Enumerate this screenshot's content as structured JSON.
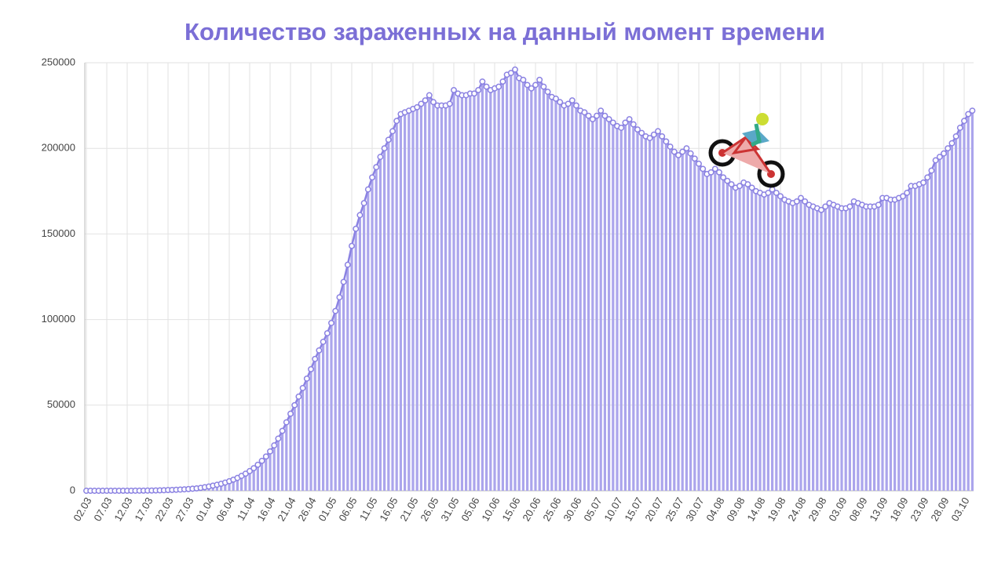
{
  "chart_data": {
    "type": "bar",
    "title": "Количество зараженных на данный момент времени",
    "categories": [
      "02.03",
      null,
      null,
      null,
      null,
      "07.03",
      null,
      null,
      null,
      null,
      "12.03",
      null,
      null,
      null,
      null,
      "17.03",
      null,
      null,
      null,
      null,
      "22.03",
      null,
      null,
      null,
      null,
      "27.03",
      null,
      null,
      null,
      null,
      "01.04",
      null,
      null,
      null,
      null,
      "06.04",
      null,
      null,
      null,
      null,
      "11.04",
      null,
      null,
      null,
      null,
      "16.04",
      null,
      null,
      null,
      null,
      "21.04",
      null,
      null,
      null,
      null,
      "26.04",
      null,
      null,
      null,
      null,
      "01.05",
      null,
      null,
      null,
      null,
      "06.05",
      null,
      null,
      null,
      null,
      "11.05",
      null,
      null,
      null,
      null,
      "16.05",
      null,
      null,
      null,
      null,
      "21.05",
      null,
      null,
      null,
      null,
      "26.05",
      null,
      null,
      null,
      null,
      "31.05",
      null,
      null,
      null,
      null,
      "05.06",
      null,
      null,
      null,
      null,
      "10.06",
      null,
      null,
      null,
      null,
      "15.06",
      null,
      null,
      null,
      null,
      "20.06",
      null,
      null,
      null,
      null,
      "25.06",
      null,
      null,
      null,
      null,
      "30.06",
      null,
      null,
      null,
      null,
      "05.07",
      null,
      null,
      null,
      null,
      "10.07",
      null,
      null,
      null,
      null,
      "15.07",
      null,
      null,
      null,
      null,
      "20.07",
      null,
      null,
      null,
      null,
      "25.07",
      null,
      null,
      null,
      null,
      "30.07",
      null,
      null,
      null,
      null,
      "04.08",
      null,
      null,
      null,
      null,
      "09.08",
      null,
      null,
      null,
      null,
      "14.08",
      null,
      null,
      null,
      null,
      "19.08",
      null,
      null,
      null,
      null,
      "24.08",
      null,
      null,
      null,
      null,
      "29.08",
      null,
      null,
      null,
      null,
      "03.09",
      null,
      null,
      null,
      null,
      "08.09",
      null,
      null,
      null,
      null,
      "13.09",
      null,
      null,
      null,
      null,
      "18.09",
      null,
      null,
      null,
      null,
      "23.09",
      null,
      null,
      null,
      null,
      "28.09",
      null,
      null,
      null,
      null,
      "03.10",
      null,
      null
    ],
    "values": [
      3,
      3,
      3,
      4,
      6,
      8,
      10,
      14,
      20,
      28,
      34,
      45,
      59,
      63,
      90,
      114,
      147,
      199,
      253,
      306,
      438,
      500,
      600,
      700,
      850,
      1000,
      1200,
      1400,
      1700,
      2100,
      2500,
      3000,
      3500,
      4100,
      4800,
      5600,
      6500,
      7500,
      8700,
      10000,
      11500,
      13200,
      15200,
      17500,
      20000,
      23000,
      26500,
      30500,
      35000,
      40000,
      45000,
      50000,
      55000,
      60000,
      65500,
      71000,
      77000,
      82000,
      87000,
      92000,
      98000,
      105000,
      113000,
      122000,
      132000,
      143000,
      153000,
      161000,
      168000,
      176000,
      183000,
      189000,
      195000,
      200000,
      205000,
      210000,
      216000,
      220000,
      221000,
      222000,
      223000,
      224000,
      226000,
      228000,
      231000,
      227000,
      225000,
      225000,
      225000,
      226000,
      234000,
      232000,
      231000,
      231000,
      232000,
      232000,
      234000,
      239000,
      236000,
      234000,
      235000,
      236000,
      239000,
      243000,
      244000,
      246000,
      241000,
      240000,
      237000,
      235000,
      237000,
      240000,
      236000,
      233000,
      230000,
      229000,
      227000,
      225000,
      226000,
      228000,
      225000,
      222000,
      221000,
      219000,
      217000,
      219000,
      222000,
      219000,
      217000,
      215000,
      213000,
      212000,
      215000,
      217000,
      214000,
      211000,
      209000,
      207000,
      206000,
      208000,
      210000,
      207000,
      204000,
      201000,
      198000,
      196000,
      198000,
      200000,
      197000,
      194000,
      191000,
      188000,
      185000,
      186000,
      188000,
      186000,
      183000,
      181000,
      179000,
      177000,
      178000,
      180000,
      179000,
      177000,
      175000,
      174000,
      173000,
      174000,
      176000,
      174000,
      172000,
      170000,
      169000,
      168000,
      169000,
      171000,
      169000,
      167000,
      166000,
      165000,
      164000,
      166000,
      168000,
      167000,
      166000,
      165000,
      165000,
      166000,
      169000,
      168000,
      167000,
      166000,
      166000,
      166000,
      167000,
      171000,
      171000,
      170000,
      170000,
      171000,
      172000,
      174000,
      178000,
      178000,
      179000,
      180000,
      183000,
      187000,
      193000,
      195000,
      197000,
      200000,
      203000,
      207000,
      212000,
      216000,
      220000,
      222000
    ],
    "color": "#aba5ec",
    "line_color": "#8b82e2",
    "markers": true,
    "ylim": [
      0,
      250000
    ],
    "yticks": [
      0,
      50000,
      100000,
      150000,
      200000,
      250000
    ],
    "grid": true
  }
}
